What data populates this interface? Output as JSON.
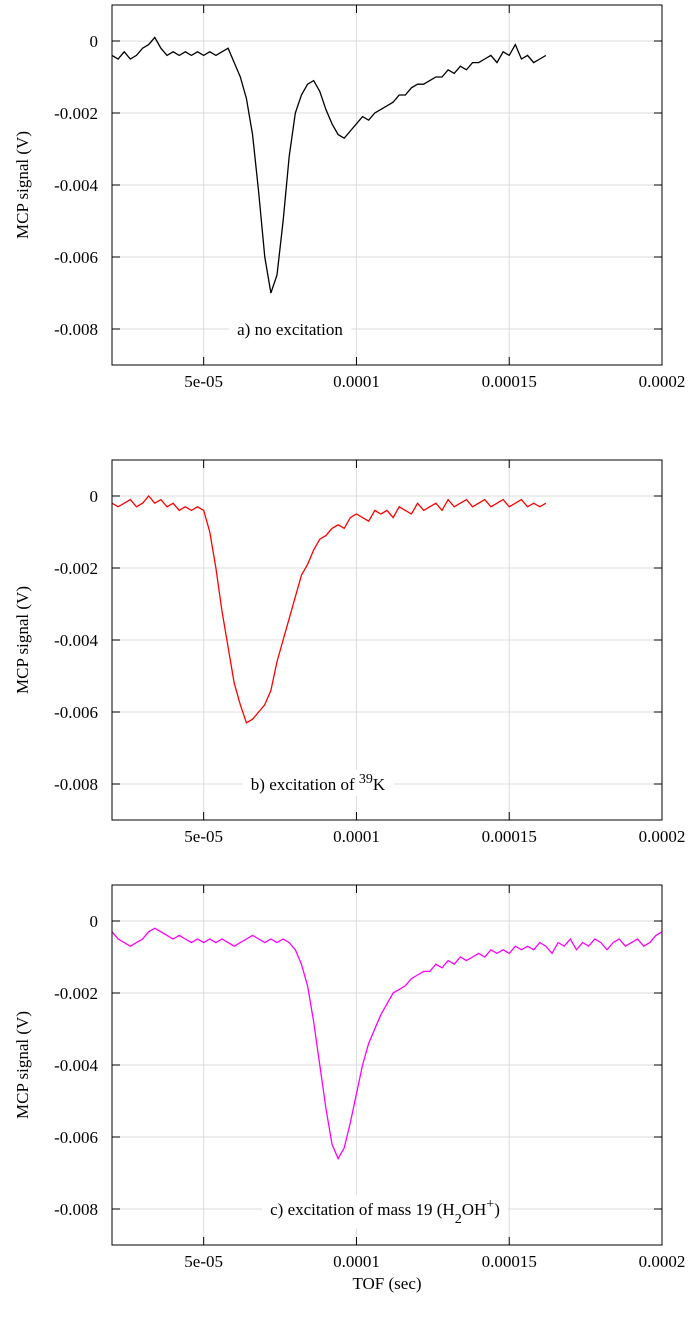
{
  "chart_data": [
    {
      "type": "line",
      "ylabel": "MCP signal (V)",
      "color": "#000000",
      "grid": true,
      "annotation": [
        {
          "text": "a)   no excitation"
        }
      ],
      "xlim": [
        2e-05,
        0.0002
      ],
      "ylim": [
        -0.009,
        0.001
      ],
      "xticks": [
        {
          "value": 5e-05,
          "label": "5e-05"
        },
        0.0001,
        0.00015,
        0.0002
      ],
      "yticks": [
        0,
        -0.002,
        -0.004,
        -0.006,
        -0.008
      ],
      "x": [
        2e-05,
        2.2e-05,
        2.4e-05,
        2.6e-05,
        2.8e-05,
        3e-05,
        3.2e-05,
        3.4e-05,
        3.6e-05,
        3.8e-05,
        4e-05,
        4.2e-05,
        4.4e-05,
        4.6e-05,
        4.8e-05,
        5e-05,
        5.2e-05,
        5.4e-05,
        5.6e-05,
        5.8e-05,
        6e-05,
        6.2e-05,
        6.4e-05,
        6.6e-05,
        6.8e-05,
        7e-05,
        7.2e-05,
        7.4e-05,
        7.6e-05,
        7.8e-05,
        8e-05,
        8.2e-05,
        8.4e-05,
        8.6e-05,
        8.8e-05,
        9e-05,
        9.2e-05,
        9.4e-05,
        9.6e-05,
        9.8e-05,
        0.0001,
        0.000102,
        0.000104,
        0.000106,
        0.000108,
        0.00011,
        0.000112,
        0.000114,
        0.000116,
        0.000118,
        0.00012,
        0.000122,
        0.000124,
        0.000126,
        0.000128,
        0.00013,
        0.000132,
        0.000134,
        0.000136,
        0.000138,
        0.00014,
        0.000142,
        0.000144,
        0.000146,
        0.000148,
        0.00015,
        0.000152,
        0.000154,
        0.000156,
        0.000158,
        0.00016,
        0.000162
      ],
      "values": [
        -0.0004,
        -0.0005,
        -0.0003,
        -0.0005,
        -0.0004,
        -0.0002,
        -0.0001,
        0.0001,
        -0.0002,
        -0.0004,
        -0.0003,
        -0.0004,
        -0.0003,
        -0.0004,
        -0.0003,
        -0.0004,
        -0.0003,
        -0.0004,
        -0.0003,
        -0.0002,
        -0.0006,
        -0.001,
        -0.0016,
        -0.0026,
        -0.0042,
        -0.006,
        -0.007,
        -0.0065,
        -0.005,
        -0.0032,
        -0.002,
        -0.0015,
        -0.0012,
        -0.0011,
        -0.0014,
        -0.0019,
        -0.0023,
        -0.0026,
        -0.0027,
        -0.0025,
        -0.0023,
        -0.0021,
        -0.0022,
        -0.002,
        -0.0019,
        -0.0018,
        -0.0017,
        -0.0015,
        -0.0015,
        -0.0013,
        -0.0012,
        -0.0012,
        -0.0011,
        -0.001,
        -0.001,
        -0.0008,
        -0.0009,
        -0.0007,
        -0.0008,
        -0.0006,
        -0.0006,
        -0.0005,
        -0.0004,
        -0.0006,
        -0.0003,
        -0.0004,
        -0.0001,
        -0.0005,
        -0.0004,
        -0.0006,
        -0.0005,
        -0.0004
      ]
    },
    {
      "type": "line",
      "ylabel": "MCP signal (V)",
      "color": "#ff0000",
      "grid": true,
      "annotation": [
        {
          "text": "b)   excitation of  "
        },
        {
          "text": "39",
          "shift": "super"
        },
        {
          "text": "K"
        }
      ],
      "xlim": [
        2e-05,
        0.0002
      ],
      "ylim": [
        -0.009,
        0.001
      ],
      "xticks": [
        {
          "value": 5e-05,
          "label": "5e-05"
        },
        0.0001,
        0.00015,
        0.0002
      ],
      "yticks": [
        0,
        -0.002,
        -0.004,
        -0.006,
        -0.008
      ],
      "x": [
        2e-05,
        2.2e-05,
        2.4e-05,
        2.6e-05,
        2.8e-05,
        3e-05,
        3.2e-05,
        3.4e-05,
        3.6e-05,
        3.8e-05,
        4e-05,
        4.2e-05,
        4.4e-05,
        4.6e-05,
        4.8e-05,
        5e-05,
        5.2e-05,
        5.4e-05,
        5.6e-05,
        5.8e-05,
        6e-05,
        6.2e-05,
        6.4e-05,
        6.6e-05,
        6.8e-05,
        7e-05,
        7.2e-05,
        7.4e-05,
        7.6e-05,
        7.8e-05,
        8e-05,
        8.2e-05,
        8.4e-05,
        8.6e-05,
        8.8e-05,
        9e-05,
        9.2e-05,
        9.4e-05,
        9.6e-05,
        9.8e-05,
        0.0001,
        0.000102,
        0.000104,
        0.000106,
        0.000108,
        0.00011,
        0.000112,
        0.000114,
        0.000116,
        0.000118,
        0.00012,
        0.000122,
        0.000124,
        0.000126,
        0.000128,
        0.00013,
        0.000132,
        0.000134,
        0.000136,
        0.000138,
        0.00014,
        0.000142,
        0.000144,
        0.000146,
        0.000148,
        0.00015,
        0.000152,
        0.000154,
        0.000156,
        0.000158,
        0.00016,
        0.000162
      ],
      "values": [
        -0.0002,
        -0.0003,
        -0.0002,
        -0.0001,
        -0.0003,
        -0.0002,
        0,
        -0.0002,
        -0.0001,
        -0.0003,
        -0.0002,
        -0.0004,
        -0.0003,
        -0.0004,
        -0.0003,
        -0.0004,
        -0.001,
        -0.002,
        -0.0032,
        -0.0042,
        -0.0052,
        -0.0058,
        -0.0063,
        -0.0062,
        -0.006,
        -0.0058,
        -0.0054,
        -0.0046,
        -0.004,
        -0.0034,
        -0.0028,
        -0.0022,
        -0.0019,
        -0.0015,
        -0.0012,
        -0.0011,
        -0.0009,
        -0.0008,
        -0.0009,
        -0.0006,
        -0.0005,
        -0.0006,
        -0.0007,
        -0.0004,
        -0.0005,
        -0.0004,
        -0.0006,
        -0.0003,
        -0.0004,
        -0.0005,
        -0.0002,
        -0.0004,
        -0.0003,
        -0.0002,
        -0.0004,
        -0.0001,
        -0.0003,
        -0.0002,
        -0.0001,
        -0.0003,
        -0.0002,
        -0.0001,
        -0.0003,
        -0.0002,
        -0.0001,
        -0.0003,
        -0.0002,
        -0.0001,
        -0.0003,
        -0.0002,
        -0.0003,
        -0.0002
      ]
    },
    {
      "type": "line",
      "ylabel": "MCP signal (V)",
      "xlabel": "TOF (sec)",
      "color": "#ff00ff",
      "grid": true,
      "annotation": [
        {
          "text": "c) excitation of mass 19 (H"
        },
        {
          "text": "2",
          "shift": "sub"
        },
        {
          "text": "OH"
        },
        {
          "text": "+",
          "shift": "super"
        },
        {
          "text": ")"
        }
      ],
      "xlim": [
        2e-05,
        0.0002
      ],
      "ylim": [
        -0.009,
        0.001
      ],
      "xticks": [
        {
          "value": 5e-05,
          "label": "5e-05"
        },
        0.0001,
        0.00015,
        0.0002
      ],
      "yticks": [
        0,
        -0.002,
        -0.004,
        -0.006,
        -0.008
      ],
      "x": [
        2e-05,
        2.2e-05,
        2.4e-05,
        2.6e-05,
        2.8e-05,
        3e-05,
        3.2e-05,
        3.4e-05,
        3.6e-05,
        3.8e-05,
        4e-05,
        4.2e-05,
        4.4e-05,
        4.6e-05,
        4.8e-05,
        5e-05,
        5.2e-05,
        5.4e-05,
        5.6e-05,
        5.8e-05,
        6e-05,
        6.2e-05,
        6.4e-05,
        6.6e-05,
        6.8e-05,
        7e-05,
        7.2e-05,
        7.4e-05,
        7.6e-05,
        7.8e-05,
        8e-05,
        8.2e-05,
        8.4e-05,
        8.6e-05,
        8.8e-05,
        9e-05,
        9.2e-05,
        9.4e-05,
        9.6e-05,
        9.8e-05,
        0.0001,
        0.000102,
        0.000104,
        0.000106,
        0.000108,
        0.00011,
        0.000112,
        0.000114,
        0.000116,
        0.000118,
        0.00012,
        0.000122,
        0.000124,
        0.000126,
        0.000128,
        0.00013,
        0.000132,
        0.000134,
        0.000136,
        0.000138,
        0.00014,
        0.000142,
        0.000144,
        0.000146,
        0.000148,
        0.00015,
        0.000152,
        0.000154,
        0.000156,
        0.000158,
        0.00016,
        0.000162,
        0.000164,
        0.000166,
        0.000168,
        0.00017,
        0.000172,
        0.000174,
        0.000176,
        0.000178,
        0.00018,
        0.000182,
        0.000184,
        0.000186,
        0.000188,
        0.00019,
        0.000192,
        0.000194,
        0.000196,
        0.000198,
        0.0002
      ],
      "values": [
        -0.0003,
        -0.0005,
        -0.0006,
        -0.0007,
        -0.0006,
        -0.0005,
        -0.0003,
        -0.0002,
        -0.0003,
        -0.0004,
        -0.0005,
        -0.0004,
        -0.0005,
        -0.0006,
        -0.0005,
        -0.0006,
        -0.0005,
        -0.0006,
        -0.0005,
        -0.0006,
        -0.0007,
        -0.0006,
        -0.0005,
        -0.0004,
        -0.0005,
        -0.0006,
        -0.0005,
        -0.0006,
        -0.0005,
        -0.0006,
        -0.0008,
        -0.0012,
        -0.0018,
        -0.0028,
        -0.004,
        -0.0052,
        -0.0062,
        -0.0066,
        -0.0063,
        -0.0056,
        -0.0048,
        -0.004,
        -0.0034,
        -0.003,
        -0.0026,
        -0.0023,
        -0.002,
        -0.0019,
        -0.0018,
        -0.0016,
        -0.0015,
        -0.0014,
        -0.0014,
        -0.0012,
        -0.0013,
        -0.0011,
        -0.0012,
        -0.001,
        -0.0011,
        -0.001,
        -0.0009,
        -0.001,
        -0.0008,
        -0.0009,
        -0.0008,
        -0.0009,
        -0.0007,
        -0.0008,
        -0.0007,
        -0.0008,
        -0.0006,
        -0.0007,
        -0.0009,
        -0.0006,
        -0.0007,
        -0.0005,
        -0.0008,
        -0.0006,
        -0.0007,
        -0.0005,
        -0.0006,
        -0.0008,
        -0.0006,
        -0.0005,
        -0.0007,
        -0.0006,
        -0.0005,
        -0.0007,
        -0.0006,
        -0.0004,
        -0.0003
      ]
    }
  ]
}
